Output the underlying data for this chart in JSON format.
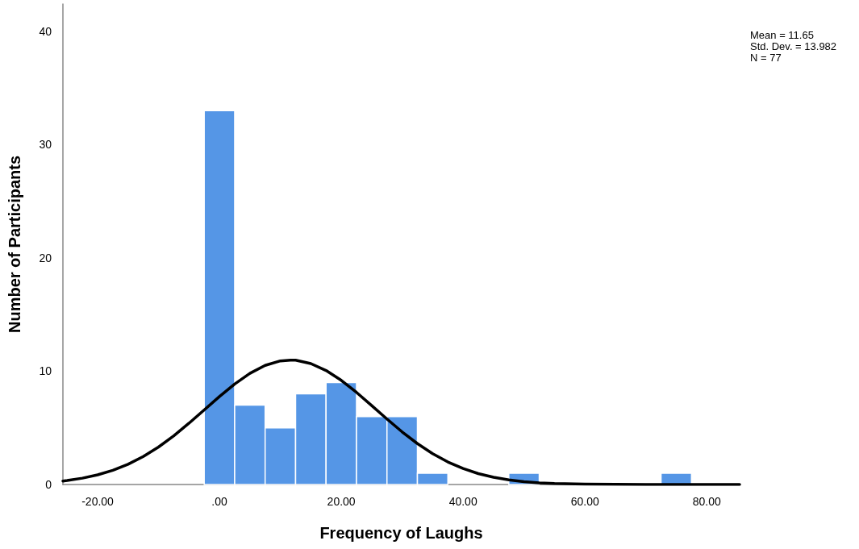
{
  "chart_data": {
    "type": "histogram",
    "xlabel": "Frequency of Laughs",
    "ylabel": "Number of Participants",
    "annotations": [
      "Mean = 11.65",
      "Std. Dev. = 13.982",
      "N = 77"
    ],
    "xlim": [
      -25.7,
      85.4
    ],
    "xticks": [
      {
        "value": -20,
        "label": "-20.00"
      },
      {
        "value": 0,
        "label": ".00"
      },
      {
        "value": 20,
        "label": "20.00"
      },
      {
        "value": 40,
        "label": "40.00"
      },
      {
        "value": 60,
        "label": "60.00"
      },
      {
        "value": 80,
        "label": "80.00"
      }
    ],
    "ylim": [
      0,
      42.4
    ],
    "yticks": [
      0,
      10,
      20,
      30,
      40
    ],
    "series": [
      {
        "color": "#5596e6",
        "bins": [
          -2.5,
          2.5,
          7.5,
          12.5,
          17.5,
          22.5,
          27.5,
          32.5,
          37.5,
          42.5,
          47.5,
          52.5,
          57.5,
          62.5,
          67.5,
          72.5,
          77.5
        ],
        "values": [
          33,
          7,
          5,
          8,
          9,
          6,
          6,
          1,
          0,
          0,
          1,
          0,
          0,
          0,
          0,
          1
        ]
      },
      {
        "type": "line",
        "color": "#000000",
        "marker": "none",
        "line_style": "solid",
        "x": [
          -25.7,
          -25,
          -22.5,
          -20,
          -17.5,
          -15,
          -12.5,
          -10,
          -7.5,
          -5,
          -2.5,
          0,
          2.5,
          5,
          7.5,
          10,
          11.65,
          12.5,
          15,
          17.5,
          20,
          22.5,
          25,
          27.5,
          30,
          32.5,
          35,
          37.5,
          40,
          42.5,
          45,
          47.5,
          50,
          52.5,
          55,
          60,
          65,
          70,
          85.4
        ],
        "values": [
          0.31,
          0.35,
          0.56,
          0.85,
          1.25,
          1.79,
          2.47,
          3.31,
          4.3,
          5.41,
          6.58,
          7.76,
          8.87,
          9.81,
          10.51,
          10.91,
          10.98,
          10.97,
          10.67,
          10.06,
          9.19,
          8.13,
          6.96,
          5.78,
          4.64,
          3.61,
          2.72,
          1.99,
          1.41,
          0.96,
          0.64,
          0.41,
          0.25,
          0.15,
          0.09,
          0.03,
          0.01,
          0,
          0
        ]
      }
    ]
  }
}
